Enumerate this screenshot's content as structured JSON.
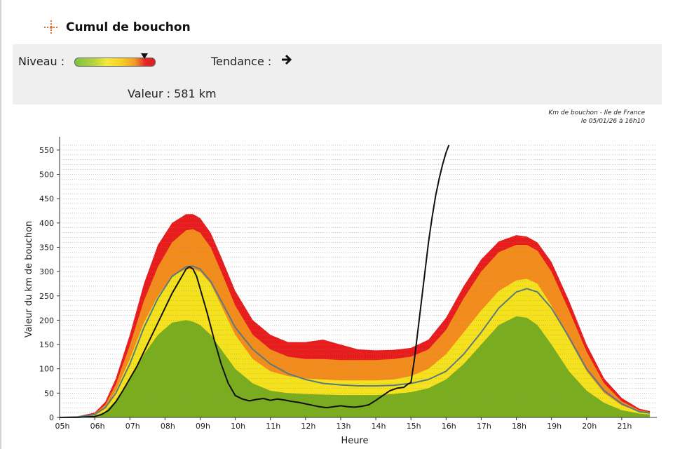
{
  "header": {
    "title": "Cumul de bouchon",
    "icon": "traffic-compass-icon"
  },
  "indicators": {
    "level_label": "Niveau :",
    "level_fraction": 0.88,
    "trend_label": "Tendance :",
    "trend_icon": "arrow-right-icon",
    "value_label": "Valeur : 581 km"
  },
  "chart_note": {
    "line1": "Km de bouchon - Ile de France",
    "line2": "le 05/01/26 à 16h10"
  },
  "chart_data": {
    "type": "area",
    "title": "",
    "xlabel": "Heure",
    "ylabel": "Valeur du  km de bouchon",
    "xlim": [
      5,
      22
    ],
    "ylim": [
      0,
      570
    ],
    "x_ticks": [
      "05h",
      "06h",
      "07h",
      "08h",
      "09h",
      "10h",
      "11h",
      "12h",
      "13h",
      "14h",
      "15h",
      "16h",
      "17h",
      "18h",
      "19h",
      "20h",
      "21h"
    ],
    "y_ticks": [
      0,
      50,
      100,
      150,
      200,
      250,
      300,
      350,
      400,
      450,
      500,
      550
    ],
    "grid": "horizontal dotted",
    "colors": {
      "green": "#7aad1e",
      "yellow": "#f5e21d",
      "orange": "#f48c1c",
      "red": "#e81c1c",
      "mean": "#5a7a7c",
      "today": "#111111"
    },
    "x": [
      5.0,
      5.5,
      6.0,
      6.3,
      6.6,
      7.0,
      7.4,
      7.8,
      8.2,
      8.6,
      8.8,
      9.0,
      9.3,
      9.6,
      10.0,
      10.5,
      11.0,
      11.5,
      12.0,
      12.5,
      13.0,
      13.5,
      14.0,
      14.5,
      15.0,
      15.5,
      16.0,
      16.5,
      17.0,
      17.5,
      18.0,
      18.3,
      18.6,
      19.0,
      19.5,
      20.0,
      20.5,
      21.0,
      21.5,
      21.8
    ],
    "bands": [
      {
        "name": "green",
        "values": [
          0,
          0,
          3,
          12,
          35,
          80,
          130,
          170,
          195,
          200,
          197,
          190,
          170,
          140,
          100,
          70,
          55,
          50,
          48,
          47,
          46,
          46,
          46,
          48,
          52,
          60,
          78,
          110,
          150,
          190,
          208,
          205,
          190,
          150,
          95,
          55,
          30,
          15,
          8,
          6
        ]
      },
      {
        "name": "yellow",
        "values": [
          0,
          1,
          6,
          20,
          55,
          120,
          195,
          250,
          290,
          305,
          305,
          300,
          275,
          230,
          170,
          120,
          95,
          85,
          80,
          78,
          76,
          76,
          76,
          78,
          85,
          100,
          130,
          175,
          220,
          260,
          282,
          285,
          275,
          230,
          160,
          95,
          50,
          25,
          12,
          9
        ]
      },
      {
        "name": "orange",
        "values": [
          0,
          1,
          8,
          26,
          68,
          148,
          240,
          310,
          360,
          385,
          387,
          380,
          350,
          300,
          230,
          170,
          140,
          125,
          120,
          120,
          118,
          118,
          118,
          120,
          125,
          140,
          180,
          245,
          300,
          340,
          355,
          355,
          343,
          300,
          220,
          135,
          70,
          33,
          15,
          11
        ]
      },
      {
        "name": "red",
        "values": [
          0,
          2,
          10,
          32,
          80,
          170,
          275,
          355,
          400,
          418,
          418,
          410,
          380,
          330,
          260,
          200,
          170,
          155,
          155,
          160,
          150,
          140,
          138,
          139,
          143,
          160,
          205,
          270,
          325,
          362,
          375,
          372,
          360,
          320,
          240,
          150,
          80,
          40,
          18,
          13
        ]
      }
    ],
    "series": [
      {
        "name": "mean",
        "x": [
          5.0,
          5.5,
          6.0,
          6.3,
          6.6,
          7.0,
          7.4,
          7.8,
          8.2,
          8.6,
          8.8,
          9.0,
          9.3,
          9.6,
          10.0,
          10.5,
          11.0,
          11.5,
          12.0,
          12.5,
          13.0,
          13.5,
          14.0,
          14.5,
          15.0,
          15.5,
          16.0,
          16.5,
          17.0,
          17.5,
          18.0,
          18.3,
          18.6,
          19.0,
          19.5,
          20.0,
          20.5,
          21.0,
          21.5,
          21.8
        ],
        "values": [
          0,
          1,
          6,
          20,
          50,
          110,
          185,
          245,
          290,
          310,
          311,
          305,
          280,
          240,
          185,
          140,
          110,
          90,
          78,
          70,
          67,
          65,
          65,
          66,
          70,
          78,
          95,
          130,
          175,
          225,
          258,
          265,
          258,
          225,
          165,
          100,
          55,
          28,
          12,
          9
        ]
      },
      {
        "name": "today",
        "x": [
          5.0,
          5.5,
          6.0,
          6.2,
          6.4,
          6.6,
          6.8,
          7.0,
          7.2,
          7.4,
          7.6,
          7.8,
          8.0,
          8.2,
          8.4,
          8.6,
          8.7,
          8.8,
          8.9,
          9.0,
          9.2,
          9.4,
          9.6,
          9.8,
          10.0,
          10.2,
          10.4,
          10.6,
          10.8,
          11.0,
          11.2,
          11.4,
          11.6,
          11.8,
          12.0,
          12.2,
          12.4,
          12.6,
          12.8,
          13.0,
          13.2,
          13.4,
          13.6,
          13.8,
          14.0,
          14.2,
          14.4,
          14.6,
          14.8,
          14.9,
          15.0,
          15.1,
          15.2,
          15.3,
          15.4,
          15.5,
          15.6,
          15.7,
          15.8,
          15.9,
          16.0,
          16.08
        ],
        "values": [
          0,
          0,
          2,
          6,
          15,
          32,
          55,
          80,
          105,
          135,
          165,
          195,
          225,
          255,
          280,
          305,
          310,
          305,
          290,
          265,
          215,
          160,
          110,
          70,
          45,
          38,
          34,
          37,
          39,
          35,
          38,
          36,
          33,
          31,
          28,
          25,
          22,
          20,
          22,
          24,
          22,
          21,
          23,
          26,
          35,
          45,
          55,
          60,
          62,
          68,
          72,
          120,
          180,
          240,
          300,
          360,
          410,
          455,
          490,
          520,
          545,
          560
        ]
      }
    ]
  }
}
